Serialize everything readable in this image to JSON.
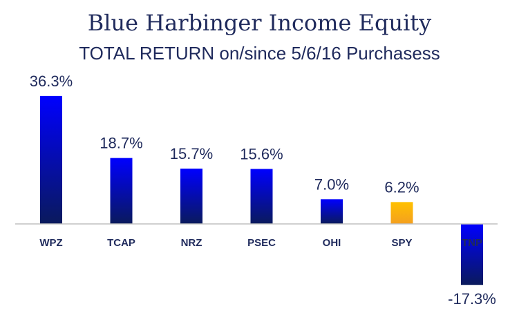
{
  "chart_data": {
    "type": "bar",
    "title": "Blue Harbinger Income Equity",
    "subtitle": "TOTAL RETURN on/since 5/6/16 Purchasess",
    "categories": [
      "WPZ",
      "TCAP",
      "NRZ",
      "PSEC",
      "OHI",
      "SPY",
      "TNP"
    ],
    "values": [
      36.3,
      18.7,
      15.7,
      15.6,
      7.0,
      6.2,
      -17.3
    ],
    "data_labels": [
      "36.3%",
      "18.7%",
      "15.7%",
      "15.6%",
      "7.0%",
      "6.2%",
      "-17.3%"
    ],
    "xlabel": "",
    "ylabel": "",
    "ylim": [
      -17.3,
      36.3
    ],
    "grid": false,
    "legend": "none",
    "colors": {
      "bar_top": "#0000ff",
      "bar_bottom": "#0a1a5c",
      "highlight_top": "#ffc000",
      "highlight_bottom": "#f4a020",
      "highlight_category": "SPY",
      "text": "#1f2a5c",
      "axis": "#c0c0c0"
    }
  }
}
